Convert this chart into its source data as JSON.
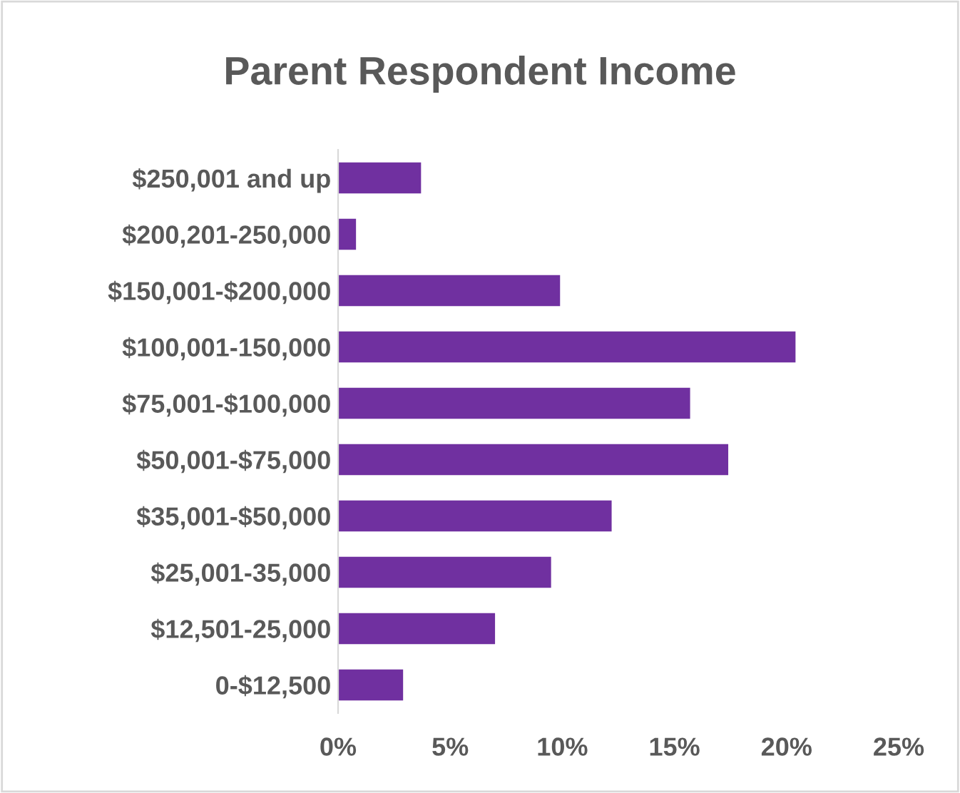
{
  "chart_data": {
    "type": "bar",
    "orientation": "horizontal",
    "title": "Parent Respondent Income",
    "categories": [
      "$250,001 and up",
      "$200,201-250,000",
      "$150,001-$200,000",
      "$100,001-150,000",
      "$75,001-$100,000",
      "$50,001-$75,000",
      "$35,001-$50,000",
      "$25,001-35,000",
      "$12,501-25,000",
      "0-$12,500"
    ],
    "values": [
      3.7,
      0.8,
      9.9,
      20.4,
      15.7,
      17.4,
      12.2,
      9.5,
      7.0,
      2.9
    ],
    "color": "#7030a0",
    "xlim": [
      0,
      25
    ],
    "xticks": [
      {
        "value": 0,
        "label": "0%"
      },
      {
        "value": 5,
        "label": "5%"
      },
      {
        "value": 10,
        "label": "10%"
      },
      {
        "value": 15,
        "label": "15%"
      },
      {
        "value": 20,
        "label": "20%"
      },
      {
        "value": 25,
        "label": "25%"
      }
    ],
    "grid": false
  }
}
